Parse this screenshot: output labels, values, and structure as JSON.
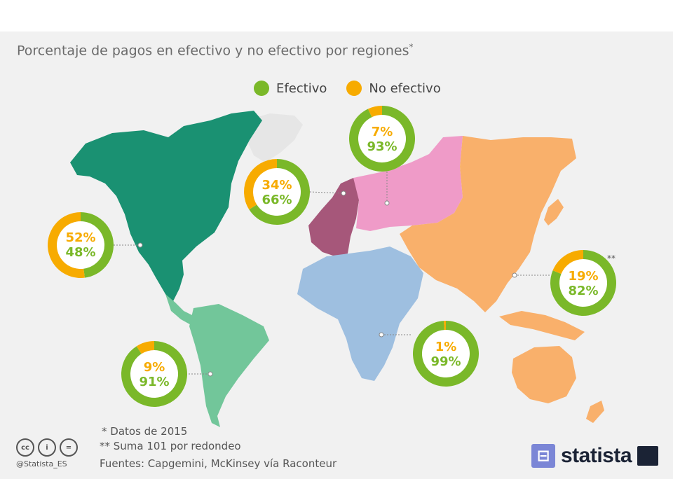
{
  "title": "Porcentaje de pagos en efectivo y no efectivo por regiones",
  "title_marker": "*",
  "legend": [
    {
      "label": "Efectivo",
      "color": "#7ab829"
    },
    {
      "label": "No efectivo",
      "color": "#f7ab00"
    }
  ],
  "chart_data": {
    "type": "pie",
    "style": "donut",
    "series_names": [
      "Efectivo",
      "No efectivo"
    ],
    "regions": [
      {
        "no_efectivo": 52,
        "efectivo": 48,
        "no_efectivo_label": "52%",
        "efectivo_label": "48%"
      },
      {
        "no_efectivo": 34,
        "efectivo": 66,
        "no_efectivo_label": "34%",
        "efectivo_label": "66%"
      },
      {
        "no_efectivo": 7,
        "efectivo": 93,
        "no_efectivo_label": "7%",
        "efectivo_label": "93%"
      },
      {
        "no_efectivo": 19,
        "efectivo": 82,
        "no_efectivo_label": "19%",
        "efectivo_label": "82%",
        "marker": "**"
      },
      {
        "no_efectivo": 9,
        "efectivo": 91,
        "no_efectivo_label": "9%",
        "efectivo_label": "91%"
      },
      {
        "no_efectivo": 1,
        "efectivo": 99,
        "no_efectivo_label": "1%",
        "efectivo_label": "99%"
      }
    ]
  },
  "footnotes": {
    "note1": "*   Datos de 2015",
    "note2": "** Suma 101 por redondeo",
    "sources": "Fuentes: Capgemini, McKinsey vía Raconteur"
  },
  "credits": {
    "license_icons": [
      "cc-icon",
      "by-icon",
      "nd-icon"
    ],
    "license_glyphs": [
      "cc",
      "i",
      "="
    ],
    "handle": "@Statista_ES",
    "brand": "statista"
  },
  "colors": {
    "north_america": "#1a9172",
    "south_america": "#72c69a",
    "europe": "#a6577a",
    "russia": "#ef9bc8",
    "africa_middle_east": "#9ebfe0",
    "asia_oceania": "#f9b06b",
    "greenland": "#e6e6e6"
  }
}
